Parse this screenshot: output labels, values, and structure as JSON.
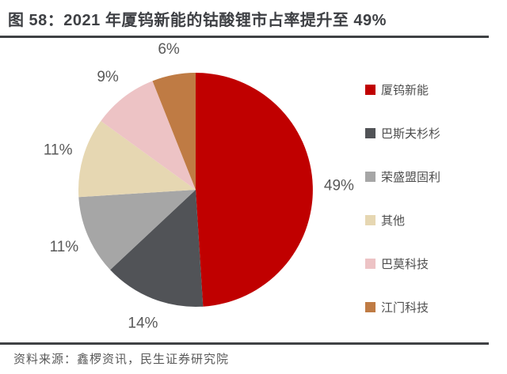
{
  "title": "图 58：2021 年厦钨新能的钴酸锂市占率提升至 49%",
  "footer": {
    "source_text": "资料来源：鑫椤资讯，民生证券研究院"
  },
  "colors": {
    "accent_red": "#c00000",
    "divider": "#3f4144",
    "title_text": "#3e4044",
    "label_text": "#595959"
  },
  "chart_data": {
    "type": "pie",
    "title": "图 58：2021 年厦钨新能的钴酸锂市占率提升至 49%",
    "legend_position": "right",
    "start_angle_deg": 0,
    "direction": "clockwise",
    "data_labels": "percent_outside",
    "series": [
      {
        "name": "厦钨新能",
        "value": 49,
        "label": "49%",
        "color": "#c00000"
      },
      {
        "name": "巴斯夫杉杉",
        "value": 14,
        "label": "14%",
        "color": "#515357"
      },
      {
        "name": "荣盛盟固利",
        "value": 11,
        "label": "11%",
        "color": "#a6a6a6"
      },
      {
        "name": "其他",
        "value": 11,
        "label": "11%",
        "color": "#e6d7b2"
      },
      {
        "name": "巴莫科技",
        "value": 9,
        "label": "9%",
        "color": "#edc3c5"
      },
      {
        "name": "江门科技",
        "value": 6,
        "label": "6%",
        "color": "#bf7b44"
      }
    ]
  }
}
